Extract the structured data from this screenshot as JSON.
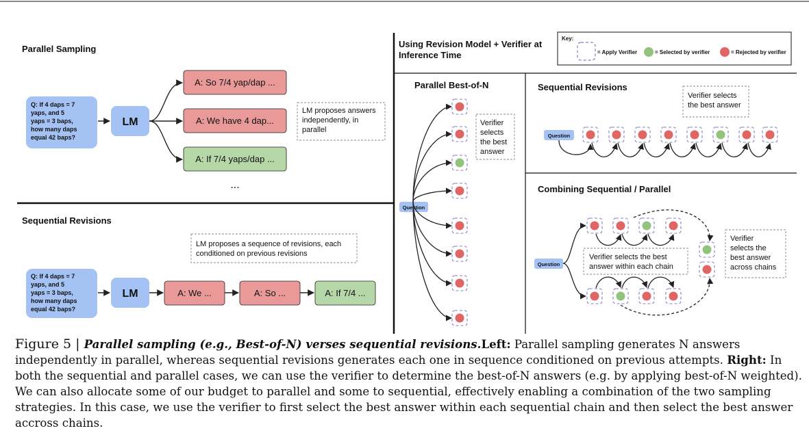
{
  "left_top": {
    "title": "Parallel Sampling",
    "question": [
      "Q:  If 4 daps = 7",
      "yaps, and 5",
      "yaps = 3 baps,",
      "how many daps",
      "equal 42 baps?"
    ],
    "lm": "LM",
    "answers": [
      "A: So 7/4 yap/dap ...",
      "A: We have 4 dap...",
      "A: If 7/4 yaps/dap ..."
    ],
    "ellipsis": "...",
    "note": [
      "LM proposes answers",
      "independently, in",
      "parallel"
    ]
  },
  "left_bottom": {
    "title": "Sequential Revisions",
    "question": [
      "Q:  If 4 daps = 7",
      "yaps, and 5",
      "yaps = 3 baps,",
      "how many daps",
      "equal 42 baps?"
    ],
    "lm": "LM",
    "revisions": [
      "A: We ...",
      "A: So ...",
      "A: If 7/4 ..."
    ],
    "note": [
      "LM proposes a sequence of revisions, each",
      "conditioned on previous revisions"
    ]
  },
  "right": {
    "header": [
      "Using Revision Model + Verifier at",
      "Inference Time"
    ],
    "key": {
      "title": "Key:",
      "apply": "= Apply Verifier",
      "selected": "= Selected by verifier",
      "rejected": "= Rejected by verifier"
    },
    "best_of_n": {
      "title": "Parallel Best-of-N",
      "question": "Question",
      "note": [
        "Verifier",
        "selects",
        "the best",
        "answer"
      ]
    },
    "seq": {
      "title": "Sequential Revisions",
      "question": "Question",
      "note": [
        "Verifier selects",
        "the best answer"
      ]
    },
    "combo": {
      "title": "Combining Sequential / Parallel",
      "question": "Question",
      "note_within": [
        "Verifier selects the best",
        "answer within each chain"
      ],
      "note_across": [
        "Verifier",
        "selects the",
        "best answer",
        "across chains"
      ]
    }
  },
  "colors": {
    "blue": "#a4c2f4",
    "red_box": "#ea9999",
    "green_box": "#b6d7a8",
    "red_dot": "#e06666",
    "green_dot": "#93c47d",
    "dash": "#8e7cc3"
  },
  "caption": {
    "figure": "Figure 5 | ",
    "title": "Parallel sampling (e.g., Best-of-N) verses sequential revisions.",
    "left_label": "Left:",
    "left_text": " Parallel sampling generates N answers independently in parallel, whereas sequential revisions generates each one in sequence conditioned on previous attempts. ",
    "right_label": "Right:",
    "right_text": " In both the sequential and parallel cases, we can use the verifier to determine the best-of-N answers (e.g. by applying best-of-N weighted). We can also allocate some of our budget to parallel and some to sequential, effectively enabling a combination of the two sampling strategies. In this case, we use the verifier to first select the best answer within each sequential chain and then select the best answer accross chains."
  }
}
